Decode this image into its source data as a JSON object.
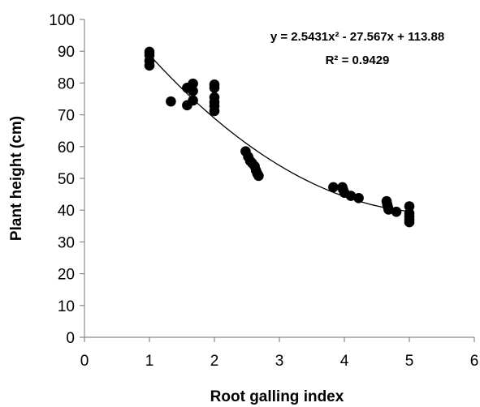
{
  "chart_data": {
    "type": "scatter",
    "xlabel": "Root galling index",
    "ylabel": "Plant height (cm)",
    "xlim": [
      0,
      6
    ],
    "ylim": [
      0,
      100
    ],
    "xticks": [
      "0",
      "1",
      "2",
      "3",
      "4",
      "5",
      "6"
    ],
    "yticks": [
      "0",
      "10",
      "20",
      "30",
      "40",
      "50",
      "60",
      "70",
      "80",
      "90",
      "100"
    ],
    "grid": false,
    "legend": "none",
    "marker_color": "#000000",
    "points": [
      {
        "x": 1,
        "y": 89.8
      },
      {
        "x": 1,
        "y": 88.8
      },
      {
        "x": 1,
        "y": 87
      },
      {
        "x": 1,
        "y": 85.5
      },
      {
        "x": 1.33,
        "y": 74.2
      },
      {
        "x": 1.58,
        "y": 78.5
      },
      {
        "x": 1.58,
        "y": 73
      },
      {
        "x": 1.67,
        "y": 79.8
      },
      {
        "x": 1.67,
        "y": 77.5
      },
      {
        "x": 1.67,
        "y": 74.5
      },
      {
        "x": 2,
        "y": 79.5
      },
      {
        "x": 2,
        "y": 78.5
      },
      {
        "x": 2,
        "y": 75.5
      },
      {
        "x": 2,
        "y": 74
      },
      {
        "x": 2,
        "y": 72.8
      },
      {
        "x": 2,
        "y": 71.2
      },
      {
        "x": 2.48,
        "y": 58.5
      },
      {
        "x": 2.52,
        "y": 56.8
      },
      {
        "x": 2.55,
        "y": 55.5
      },
      {
        "x": 2.58,
        "y": 54.8
      },
      {
        "x": 2.62,
        "y": 53.8
      },
      {
        "x": 2.64,
        "y": 52.5
      },
      {
        "x": 2.66,
        "y": 51.5
      },
      {
        "x": 2.68,
        "y": 50.8
      },
      {
        "x": 3.83,
        "y": 47.2
      },
      {
        "x": 3.97,
        "y": 47.2
      },
      {
        "x": 3.98,
        "y": 46.5
      },
      {
        "x": 4,
        "y": 45.5
      },
      {
        "x": 4.1,
        "y": 44.5
      },
      {
        "x": 4.22,
        "y": 43.8
      },
      {
        "x": 4.65,
        "y": 42.8
      },
      {
        "x": 4.66,
        "y": 41.8
      },
      {
        "x": 4.67,
        "y": 41
      },
      {
        "x": 4.68,
        "y": 40.2
      },
      {
        "x": 4.8,
        "y": 39.5
      },
      {
        "x": 5,
        "y": 41.2
      },
      {
        "x": 5,
        "y": 39
      },
      {
        "x": 5,
        "y": 38
      },
      {
        "x": 5,
        "y": 37
      },
      {
        "x": 5,
        "y": 36.2
      }
    ],
    "trendline": {
      "type": "polynomial",
      "coefficients": [
        2.5431,
        -27.567,
        113.88
      ],
      "x_range": [
        1,
        5
      ],
      "equation": "y = 2.5431x² - 27.567x + 113.88",
      "r_squared": "R² = 0.9429"
    }
  }
}
